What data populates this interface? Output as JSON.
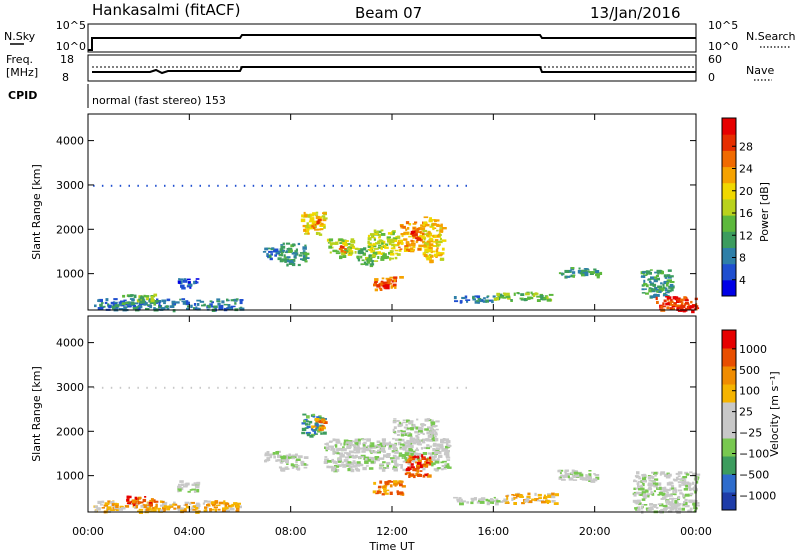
{
  "header": {
    "station": "Hankasalmi (fitACF)",
    "beam": "Beam 07",
    "date": "13/Jan/2016"
  },
  "strips": {
    "nsky_label": "N.Sky",
    "nsky_ticks": [
      "10^5",
      "10^0"
    ],
    "nsearch_label": "N.Search",
    "nsearch_ticks": [
      "10^5",
      "10^0"
    ],
    "freq_label_1": "Freq.",
    "freq_label_2": "[MHz]",
    "freq_ticks": [
      "18",
      "8"
    ],
    "nave_label": "Nave",
    "nave_ticks": [
      "60",
      "0"
    ],
    "cpid_label": "CPID",
    "cpid_value": "normal (fast stereo) 153"
  },
  "chart_data": [
    {
      "type": "heatmap",
      "name": "power",
      "ylabel": "Slant Range [km]",
      "y_ticks": [
        "4000",
        "3000",
        "2000",
        "1000"
      ],
      "ylim": [
        180,
        4600
      ],
      "xlim": [
        0,
        24
      ],
      "colorbar": {
        "label": "Power [dB]",
        "ticks": [
          "28",
          "24",
          "20",
          "16",
          "12",
          "8",
          "4"
        ],
        "colors": [
          "#0000e6",
          "#1f4fd0",
          "#2e7fa8",
          "#3c9c5e",
          "#5cb83c",
          "#b9d21c",
          "#f0d800",
          "#f5a200",
          "#f06a00",
          "#e62e00",
          "#e60000"
        ]
      },
      "blobs": [
        {
          "t0": 6.9,
          "t1": 7.5,
          "r0": 1350,
          "r1": 1600,
          "level": 2
        },
        {
          "t0": 7.5,
          "t1": 8.6,
          "r0": 1200,
          "r1": 1700,
          "level": 3
        },
        {
          "t0": 8.4,
          "t1": 9.3,
          "r0": 1900,
          "r1": 2400,
          "level": 6
        },
        {
          "t0": 8.8,
          "t1": 9.1,
          "r0": 2050,
          "r1": 2250,
          "level": 8
        },
        {
          "t0": 9.4,
          "t1": 10.4,
          "r0": 1400,
          "r1": 1800,
          "level": 5
        },
        {
          "t0": 9.9,
          "t1": 10.2,
          "r0": 1500,
          "r1": 1650,
          "level": 8
        },
        {
          "t0": 10.5,
          "t1": 11.3,
          "r0": 1200,
          "r1": 1600,
          "level": 4
        },
        {
          "t0": 11.0,
          "t1": 12.2,
          "r0": 1350,
          "r1": 2000,
          "level": 5
        },
        {
          "t0": 12.2,
          "t1": 13.2,
          "r0": 1550,
          "r1": 2200,
          "level": 7
        },
        {
          "t0": 12.7,
          "t1": 13.0,
          "r0": 1750,
          "r1": 2000,
          "level": 9
        },
        {
          "t0": 13.2,
          "t1": 14.0,
          "r0": 1300,
          "r1": 2300,
          "level": 6
        },
        {
          "t0": 11.2,
          "t1": 12.3,
          "r0": 650,
          "r1": 950,
          "level": 8
        },
        {
          "t0": 11.4,
          "t1": 11.8,
          "r0": 700,
          "r1": 850,
          "level": 9
        },
        {
          "t0": 14.4,
          "t1": 16.0,
          "r0": 380,
          "r1": 520,
          "level": 2
        },
        {
          "t0": 16.0,
          "t1": 18.2,
          "r0": 420,
          "r1": 600,
          "level": 4
        },
        {
          "t0": 18.5,
          "t1": 20.2,
          "r0": 950,
          "r1": 1150,
          "level": 3
        },
        {
          "t0": 21.8,
          "t1": 23.0,
          "r0": 500,
          "r1": 1100,
          "level": 3
        },
        {
          "t0": 22.4,
          "t1": 24.0,
          "r0": 200,
          "r1": 500,
          "level": 9
        },
        {
          "t0": 23.0,
          "t1": 24.0,
          "r0": 180,
          "r1": 320,
          "level": 10
        },
        {
          "t0": 0.2,
          "t1": 6.0,
          "r0": 200,
          "r1": 450,
          "level": 2
        },
        {
          "t0": 1.3,
          "t1": 2.6,
          "r0": 350,
          "r1": 550,
          "level": 4
        },
        {
          "t0": 3.5,
          "t1": 4.3,
          "r0": 700,
          "r1": 900,
          "level": 1
        }
      ],
      "dots": [
        {
          "t0": 0.2,
          "t1": 15.0,
          "r": 2980,
          "level": 1
        }
      ]
    },
    {
      "type": "heatmap",
      "name": "velocity",
      "ylabel": "Slant Range [km]",
      "y_ticks": [
        "4000",
        "3000",
        "2000",
        "1000"
      ],
      "ylim": [
        180,
        4600
      ],
      "xlim": [
        0,
        24
      ],
      "x_ticks": [
        "00:00",
        "04:00",
        "08:00",
        "12:00",
        "16:00",
        "20:00",
        "00:00"
      ],
      "xlabel": "Time UT",
      "colorbar": {
        "label": "Velocity [m s⁻¹]",
        "ticks": [
          "1000",
          "500",
          "100",
          "25",
          "−25",
          "−100",
          "−500",
          "−1000"
        ],
        "colors": [
          "#1e3ca8",
          "#2e6ccc",
          "#3c9c5e",
          "#78c850",
          "#c8c8c8",
          "#c8c8c8",
          "#f5b400",
          "#f08c00",
          "#e84e00",
          "#e60000"
        ]
      },
      "blobs": [
        {
          "t0": 6.9,
          "t1": 7.5,
          "r0": 1350,
          "r1": 1600,
          "level": 4
        },
        {
          "t0": 7.5,
          "t1": 8.6,
          "r0": 1150,
          "r1": 1500,
          "level": 4
        },
        {
          "t0": 8.4,
          "t1": 9.3,
          "r0": 1900,
          "r1": 2400,
          "level": 2
        },
        {
          "t0": 8.8,
          "t1": 9.3,
          "r0": 2050,
          "r1": 2300,
          "level": 7
        },
        {
          "t0": 9.3,
          "t1": 14.2,
          "r0": 1150,
          "r1": 1850,
          "level": 4
        },
        {
          "t0": 12.5,
          "t1": 13.5,
          "r0": 1000,
          "r1": 1500,
          "level": 8
        },
        {
          "t0": 11.2,
          "t1": 12.4,
          "r0": 600,
          "r1": 900,
          "level": 7
        },
        {
          "t0": 12.0,
          "t1": 13.8,
          "r0": 1800,
          "r1": 2300,
          "level": 4
        },
        {
          "t0": 14.4,
          "t1": 16.4,
          "r0": 380,
          "r1": 520,
          "level": 4
        },
        {
          "t0": 16.4,
          "t1": 18.5,
          "r0": 400,
          "r1": 620,
          "level": 6
        },
        {
          "t0": 18.5,
          "t1": 20.2,
          "r0": 900,
          "r1": 1150,
          "level": 4
        },
        {
          "t0": 21.5,
          "t1": 24.0,
          "r0": 200,
          "r1": 1100,
          "level": 4
        },
        {
          "t0": 3.5,
          "t1": 4.3,
          "r0": 650,
          "r1": 900,
          "level": 4
        },
        {
          "t0": 0.2,
          "t1": 6.0,
          "r0": 200,
          "r1": 450,
          "level": 6
        },
        {
          "t0": 1.4,
          "t1": 2.6,
          "r0": 350,
          "r1": 550,
          "level": 8
        }
      ],
      "dots": [
        {
          "t0": 0.2,
          "t1": 15.0,
          "r": 2980,
          "level": 4
        }
      ]
    }
  ],
  "colors": {
    "axis": "#000000",
    "background": "#ffffff"
  }
}
